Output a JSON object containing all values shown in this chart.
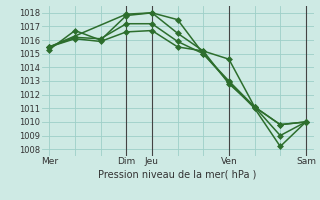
{
  "xlabel": "Pression niveau de la mer( hPa )",
  "ylim": [
    1007.5,
    1018.5
  ],
  "yticks": [
    1008,
    1009,
    1010,
    1011,
    1012,
    1013,
    1014,
    1015,
    1016,
    1017,
    1018
  ],
  "bg_color": "#ceeae4",
  "grid_color": "#9ecfc8",
  "line_color": "#2d6e2d",
  "vline_color": "#444444",
  "xtick_labels": [
    "Mer",
    "",
    "",
    "Dim",
    "Jeu",
    "",
    "",
    "Ven",
    "",
    "",
    "Sam"
  ],
  "xtick_positions": [
    0,
    1,
    2,
    3,
    4,
    5,
    6,
    7,
    8,
    9,
    10
  ],
  "vlines": [
    3,
    4,
    7,
    10
  ],
  "series": [
    {
      "x": [
        0,
        1,
        2,
        3,
        4,
        5,
        6,
        7,
        8,
        9,
        10
      ],
      "y": [
        1015.3,
        1016.7,
        1016.0,
        1017.8,
        1018.0,
        1016.5,
        1015.2,
        1012.8,
        1011.1,
        1009.8,
        1010.0
      ]
    },
    {
      "x": [
        0,
        1,
        2,
        3,
        4,
        5,
        6,
        7,
        8,
        9,
        10
      ],
      "y": [
        1015.5,
        1016.2,
        1016.1,
        1017.2,
        1017.2,
        1015.9,
        1015.0,
        1013.0,
        1011.1,
        1009.8,
        1010.0
      ]
    },
    {
      "x": [
        0,
        1,
        2,
        3,
        4,
        5,
        6,
        7,
        8,
        9,
        10
      ],
      "y": [
        1015.5,
        1016.1,
        1015.9,
        1016.6,
        1016.7,
        1015.5,
        1015.2,
        1014.6,
        1011.1,
        1009.0,
        1010.0
      ]
    },
    {
      "x": [
        0,
        3,
        4,
        5,
        6,
        7,
        8,
        9,
        10
      ],
      "y": [
        1015.5,
        1017.9,
        1018.0,
        1017.5,
        1015.0,
        1012.9,
        1011.0,
        1008.2,
        1010.0
      ]
    }
  ]
}
